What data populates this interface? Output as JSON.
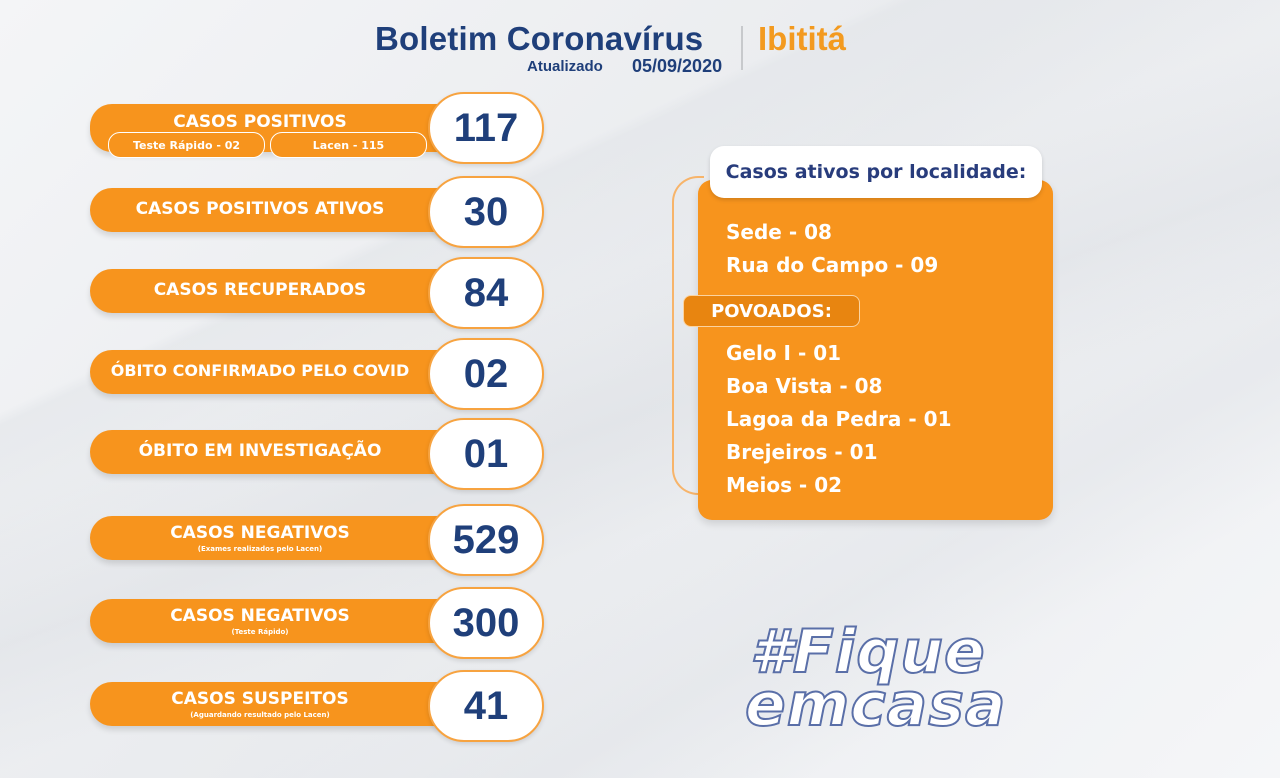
{
  "header": {
    "title": "Boletim Coronavírus",
    "city": "Ibititá",
    "updated_label": "Atualizado",
    "updated_date": "05/09/2020"
  },
  "stats": [
    {
      "label": "CASOS  POSITIVOS",
      "value": "117",
      "pills": [
        "Teste Rápido - 02",
        "Lacen - 115"
      ]
    },
    {
      "label": "CASOS POSITIVOS ATIVOS",
      "value": "30"
    },
    {
      "label": "CASOS RECUPERADOS",
      "value": "84"
    },
    {
      "label": "ÓBITO CONFIRMADO PELO COVID",
      "value": "02"
    },
    {
      "label": "ÓBITO EM INVESTIGAÇÃO",
      "value": "01"
    },
    {
      "label": "CASOS NEGATIVOS",
      "sub": "(Exames realizados pelo Lacen)",
      "value": "529"
    },
    {
      "label": "CASOS NEGATIVOS",
      "sub": "(Teste Rápido)",
      "value": "300"
    },
    {
      "label": "CASOS SUSPEITOS",
      "sub": "(Aguardando resultado pelo Lacen)",
      "value": "41"
    }
  ],
  "panel": {
    "title": "Casos ativos por localidade:",
    "sede": [
      "Sede - 08",
      "Rua do Campo - 09"
    ],
    "povoados_label": "POVOADOS:",
    "povoados": [
      "Gelo I - 01",
      "Boa Vista - 08",
      "Lagoa da Pedra - 01",
      "Brejeiros - 01",
      "Meios  - 02"
    ]
  },
  "hashtag": {
    "line1": "#Fique",
    "line2": "emcasa"
  },
  "colors": {
    "orange": "#f7941d",
    "navy": "#1f3f7a"
  }
}
